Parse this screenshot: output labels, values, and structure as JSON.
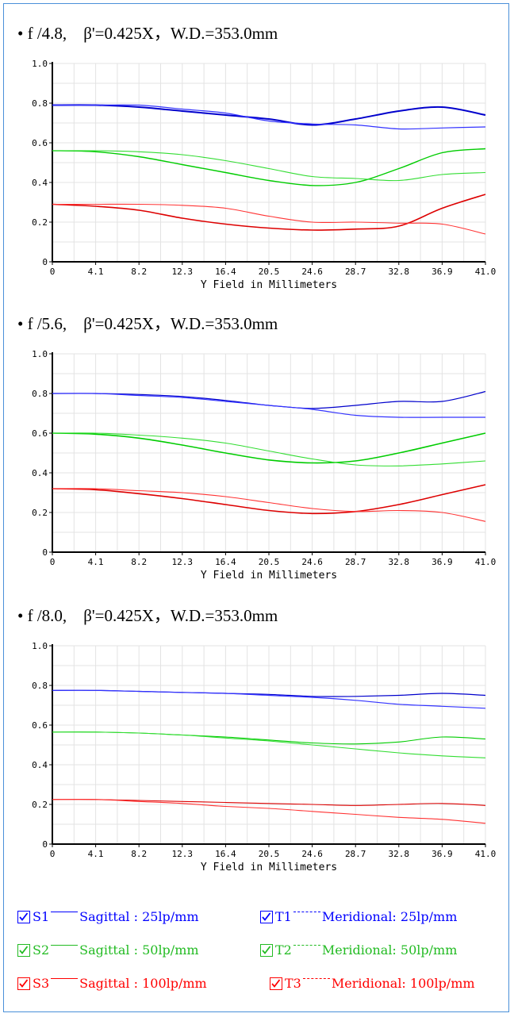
{
  "panels": [
    {
      "title_prefix": "• f /4.8,",
      "title_rest": "β'=0.425X，W.D.=353.0mm"
    },
    {
      "title_prefix": "• f /5.6,",
      "title_rest": "β'=0.425X，W.D.=353.0mm"
    },
    {
      "title_prefix": "• f /8.0,",
      "title_rest": "β'=0.425X，W.D.=353.0mm"
    }
  ],
  "legend": [
    {
      "code": "S1",
      "text": "Sagittal : 25lp/mm",
      "color": "#0000ff",
      "style": "solid"
    },
    {
      "code": "T1",
      "text": "Meridional: 25lp/mm",
      "color": "#0000ff",
      "style": "dashed"
    },
    {
      "code": "S2",
      "text": "Sagittal : 50lp/mm",
      "color": "#00cc00",
      "style": "solid"
    },
    {
      "code": "T2",
      "text": "Meridional: 50lp/mm",
      "color": "#00cc00",
      "style": "dashed"
    },
    {
      "code": "S3",
      "text": "Sagittal : 100lp/mm",
      "color": "#ff0000",
      "style": "solid"
    },
    {
      "code": "T3",
      "text": "Meridional: 100lp/mm",
      "color": "#ff0000",
      "style": "dashed"
    }
  ],
  "chart_data": [
    {
      "type": "line",
      "xlabel": "Y Field in Millimeters",
      "xlim": [
        0,
        41.0
      ],
      "ylim": [
        0,
        1.0
      ],
      "xticks": [
        "0",
        "4.1",
        "8.2",
        "12.3",
        "16.4",
        "20.5",
        "24.6",
        "28.7",
        "32.8",
        "36.9",
        "41.0"
      ],
      "yticks": [
        "0",
        "0.2",
        "0.4",
        "0.6",
        "0.8",
        "1.0"
      ],
      "grid": true,
      "x": [
        0,
        4.1,
        8.2,
        12.3,
        16.4,
        20.5,
        24.6,
        28.7,
        32.8,
        36.9,
        41.0
      ],
      "series": [
        {
          "color": "#0000cc",
          "width": 2.0,
          "values": [
            0.79,
            0.79,
            0.78,
            0.76,
            0.74,
            0.72,
            0.69,
            0.72,
            0.76,
            0.78,
            0.74
          ]
        },
        {
          "color": "#3333ff",
          "width": 1.2,
          "values": [
            0.79,
            0.79,
            0.79,
            0.77,
            0.75,
            0.71,
            0.695,
            0.69,
            0.67,
            0.675,
            0.68
          ]
        },
        {
          "color": "#00cc00",
          "width": 1.4,
          "values": [
            0.56,
            0.555,
            0.53,
            0.49,
            0.45,
            0.41,
            0.385,
            0.4,
            0.47,
            0.55,
            0.57
          ]
        },
        {
          "color": "#33dd33",
          "width": 1.1,
          "values": [
            0.56,
            0.56,
            0.555,
            0.54,
            0.51,
            0.47,
            0.43,
            0.42,
            0.41,
            0.44,
            0.45
          ]
        },
        {
          "color": "#dd0000",
          "width": 1.6,
          "values": [
            0.29,
            0.28,
            0.26,
            0.22,
            0.19,
            0.17,
            0.16,
            0.165,
            0.18,
            0.27,
            0.34
          ]
        },
        {
          "color": "#ff3333",
          "width": 1.1,
          "values": [
            0.29,
            0.29,
            0.29,
            0.285,
            0.27,
            0.23,
            0.2,
            0.2,
            0.195,
            0.19,
            0.14
          ]
        }
      ]
    },
    {
      "type": "line",
      "xlabel": "Y Field in Millimeters",
      "xlim": [
        0,
        41.0
      ],
      "ylim": [
        0,
        1.0
      ],
      "xticks": [
        "0",
        "4.1",
        "8.2",
        "12.3",
        "16.4",
        "20.5",
        "24.6",
        "28.7",
        "32.8",
        "36.9",
        "41.0"
      ],
      "yticks": [
        "0",
        "0.2",
        "0.4",
        "0.6",
        "0.8",
        "1.0"
      ],
      "grid": true,
      "x": [
        0,
        4.1,
        8.2,
        12.3,
        16.4,
        20.5,
        24.6,
        28.7,
        32.8,
        36.9,
        41.0
      ],
      "series": [
        {
          "color": "#0000cc",
          "width": 1.2,
          "values": [
            0.8,
            0.8,
            0.795,
            0.785,
            0.765,
            0.74,
            0.725,
            0.74,
            0.76,
            0.76,
            0.81
          ]
        },
        {
          "color": "#3333ff",
          "width": 1.2,
          "values": [
            0.8,
            0.8,
            0.79,
            0.78,
            0.76,
            0.74,
            0.72,
            0.69,
            0.68,
            0.68,
            0.68
          ]
        },
        {
          "color": "#00cc00",
          "width": 1.6,
          "values": [
            0.6,
            0.595,
            0.575,
            0.54,
            0.5,
            0.465,
            0.45,
            0.46,
            0.5,
            0.55,
            0.6
          ]
        },
        {
          "color": "#33dd33",
          "width": 1.1,
          "values": [
            0.6,
            0.6,
            0.59,
            0.575,
            0.55,
            0.51,
            0.47,
            0.44,
            0.435,
            0.445,
            0.46
          ]
        },
        {
          "color": "#dd0000",
          "width": 1.6,
          "values": [
            0.32,
            0.315,
            0.295,
            0.27,
            0.24,
            0.21,
            0.195,
            0.205,
            0.24,
            0.29,
            0.34
          ]
        },
        {
          "color": "#ff3333",
          "width": 1.1,
          "values": [
            0.32,
            0.32,
            0.31,
            0.3,
            0.28,
            0.25,
            0.22,
            0.205,
            0.21,
            0.2,
            0.155
          ]
        }
      ]
    },
    {
      "type": "line",
      "xlabel": "Y Field in Millimeters",
      "xlim": [
        0,
        41.0
      ],
      "ylim": [
        0,
        1.0
      ],
      "xticks": [
        "0",
        "4.1",
        "8.2",
        "12.3",
        "16.4",
        "20.5",
        "24.6",
        "28.7",
        "32.8",
        "36.9",
        "41.0"
      ],
      "yticks": [
        "0",
        "0.2",
        "0.4",
        "0.6",
        "0.8",
        "1.0"
      ],
      "grid": true,
      "x": [
        0,
        4.1,
        8.2,
        12.3,
        16.4,
        20.5,
        24.6,
        28.7,
        32.8,
        36.9,
        41.0
      ],
      "series": [
        {
          "color": "#0000cc",
          "width": 1.2,
          "values": [
            0.775,
            0.775,
            0.77,
            0.765,
            0.76,
            0.755,
            0.745,
            0.745,
            0.75,
            0.76,
            0.75
          ]
        },
        {
          "color": "#3333ff",
          "width": 1.2,
          "values": [
            0.775,
            0.775,
            0.77,
            0.765,
            0.76,
            0.75,
            0.74,
            0.725,
            0.705,
            0.695,
            0.685
          ]
        },
        {
          "color": "#00cc00",
          "width": 1.1,
          "values": [
            0.565,
            0.565,
            0.56,
            0.55,
            0.54,
            0.525,
            0.51,
            0.505,
            0.515,
            0.54,
            0.53
          ]
        },
        {
          "color": "#33dd33",
          "width": 1.1,
          "values": [
            0.565,
            0.565,
            0.56,
            0.55,
            0.535,
            0.52,
            0.5,
            0.48,
            0.46,
            0.445,
            0.435
          ]
        },
        {
          "color": "#dd0000",
          "width": 1.1,
          "values": [
            0.225,
            0.225,
            0.22,
            0.215,
            0.21,
            0.205,
            0.2,
            0.195,
            0.2,
            0.205,
            0.195
          ]
        },
        {
          "color": "#ff3333",
          "width": 1.1,
          "values": [
            0.225,
            0.225,
            0.215,
            0.205,
            0.19,
            0.18,
            0.165,
            0.15,
            0.135,
            0.125,
            0.105
          ]
        }
      ]
    }
  ]
}
